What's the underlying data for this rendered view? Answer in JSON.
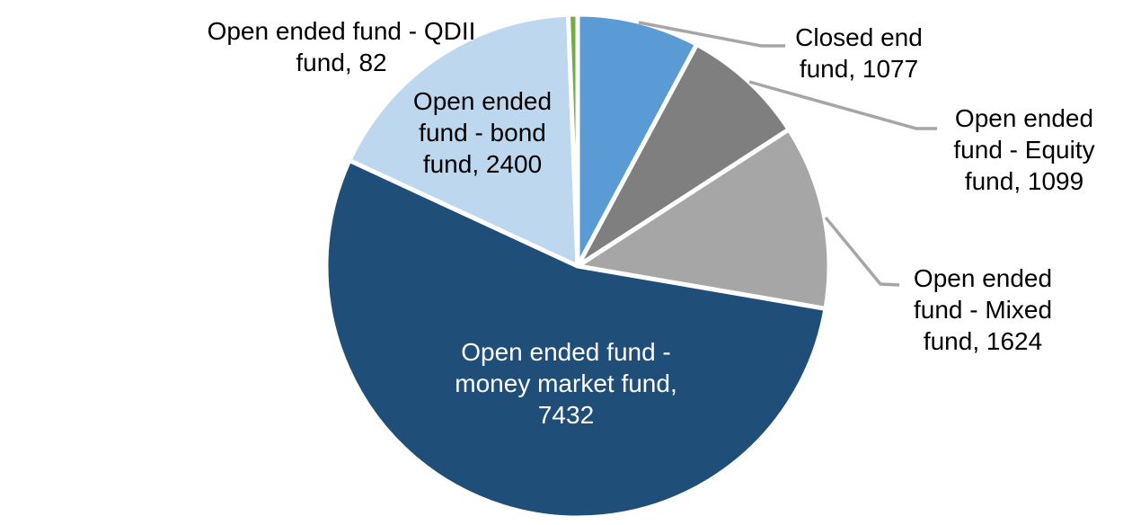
{
  "chart_data": {
    "type": "pie",
    "title": "",
    "total": 13714,
    "direction": "clockwise",
    "start_angle_deg": 0,
    "background_color": "#FFFFFF",
    "slice_border_color": "#FFFFFF",
    "leader_line_color": "#A6A6A6",
    "slices": [
      {
        "label": "Closed end fund",
        "value": 1077,
        "color": "#5B9BD5",
        "label_position": "outside",
        "label_lines": [
          "Closed end",
          "fund, 1077"
        ]
      },
      {
        "label": "Open ended fund - Equity fund",
        "value": 1099,
        "color": "#7F7F7F",
        "label_position": "outside",
        "label_lines": [
          "Open ended",
          "fund - Equity",
          "fund, 1099"
        ]
      },
      {
        "label": "Open ended fund - Mixed fund",
        "value": 1624,
        "color": "#A6A6A6",
        "label_position": "outside",
        "label_lines": [
          "Open ended",
          "fund - Mixed",
          "fund, 1624"
        ]
      },
      {
        "label": "Open ended fund - money market fund",
        "value": 7432,
        "color": "#1F4E79",
        "label_position": "inside",
        "label_text_color": "#FFFFFF",
        "label_lines": [
          "Open ended fund -",
          "money market fund,",
          "7432"
        ]
      },
      {
        "label": "Open ended fund - bond fund",
        "value": 2400,
        "color": "#BDD7EE",
        "label_position": "inside",
        "label_text_color": "#000000",
        "label_lines": [
          "Open ended",
          "fund - bond",
          "fund, 2400"
        ]
      },
      {
        "label": "Open ended fund - QDII fund",
        "value": 82,
        "color": "#70AD47",
        "label_position": "outside",
        "label_lines": [
          "Open ended fund - QDII",
          "fund, 82"
        ]
      }
    ]
  }
}
